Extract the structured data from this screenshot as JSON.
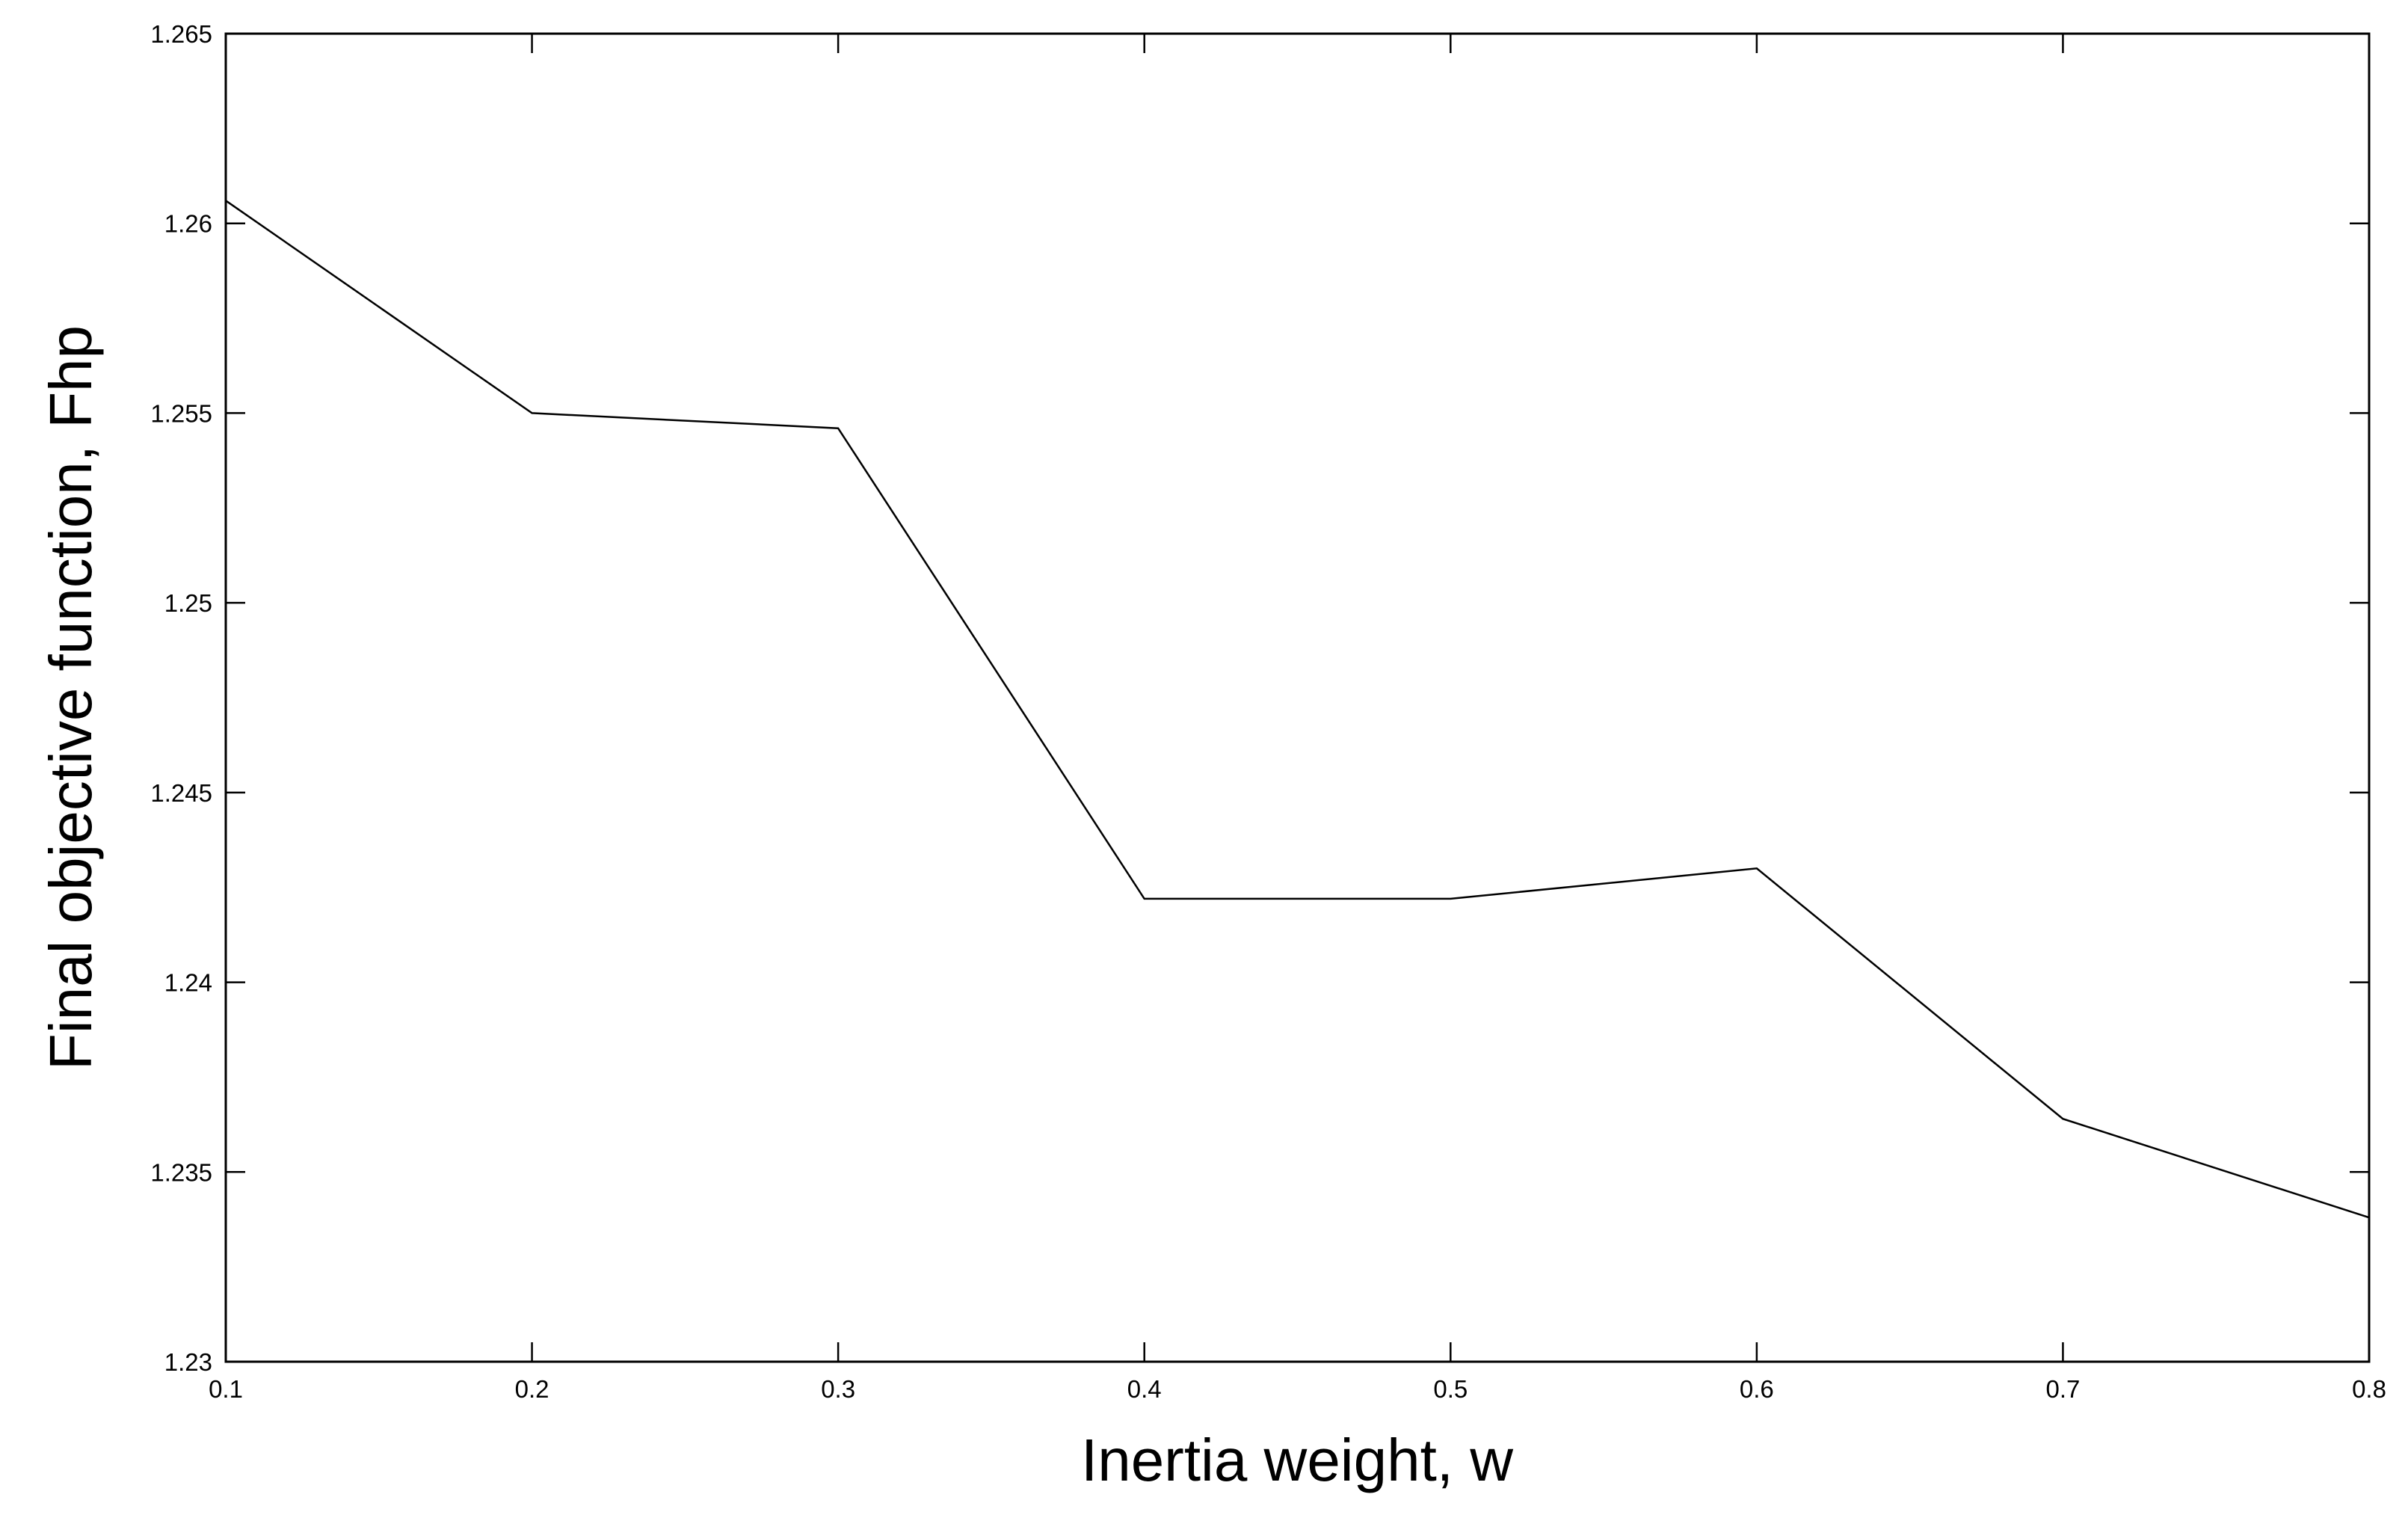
{
  "chart_data": {
    "type": "line",
    "title": "",
    "xlabel": "Inertia weight, w",
    "ylabel": "Final objective function, Fhp",
    "xlim": [
      0.1,
      0.8
    ],
    "ylim": [
      1.23,
      1.265
    ],
    "grid": false,
    "x_ticks": [
      "0.1",
      "0.2",
      "0.3",
      "0.4",
      "0.5",
      "0.6",
      "0.7",
      "0.8"
    ],
    "y_ticks": [
      "1.23",
      "1.235",
      "1.24",
      "1.245",
      "1.25",
      "1.255",
      "1.26",
      "1.265"
    ],
    "series": [
      {
        "color": "#000000",
        "x": [
          0.1,
          0.2,
          0.3,
          0.4,
          0.5,
          0.6,
          0.7,
          0.8
        ],
        "y": [
          1.2606,
          1.255,
          1.2546,
          1.2422,
          1.2422,
          1.243,
          1.2364,
          1.2338
        ]
      }
    ]
  }
}
